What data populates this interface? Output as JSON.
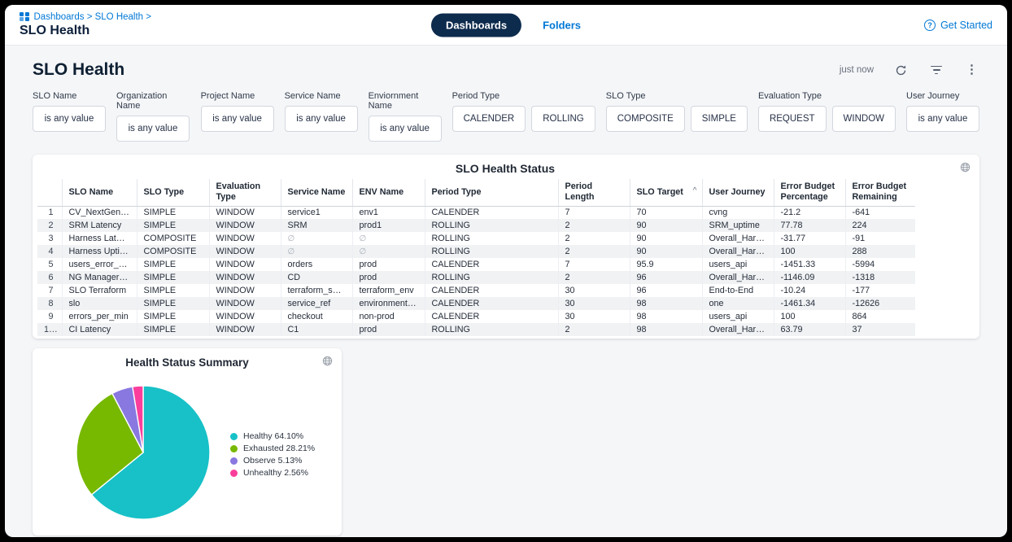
{
  "topbar": {
    "breadcrumb": "Dashboards > SLO Health >",
    "page_title": "SLO Health",
    "tabs": [
      {
        "label": "Dashboards",
        "active": true
      },
      {
        "label": "Folders",
        "active": false
      }
    ],
    "get_started": "Get Started"
  },
  "dashboard": {
    "title": "SLO Health",
    "updated": "just now"
  },
  "filters": [
    {
      "label": "SLO Name",
      "type": "value",
      "value": "is any value"
    },
    {
      "label": "Organization Name",
      "type": "value",
      "value": "is any value"
    },
    {
      "label": "Project Name",
      "type": "value",
      "value": "is any value"
    },
    {
      "label": "Service Name",
      "type": "value",
      "value": "is any value"
    },
    {
      "label": "Enviornment Name",
      "type": "value",
      "value": "is any value"
    },
    {
      "label": "Period Type",
      "type": "buttons",
      "options": [
        "CALENDER",
        "ROLLING"
      ]
    },
    {
      "label": "SLO Type",
      "type": "buttons",
      "options": [
        "COMPOSITE",
        "SIMPLE"
      ]
    },
    {
      "label": "Evaluation Type",
      "type": "buttons",
      "options": [
        "REQUEST",
        "WINDOW"
      ]
    },
    {
      "label": "User Journey",
      "type": "value",
      "value": "is any value"
    }
  ],
  "table": {
    "title": "SLO Health Status",
    "columns": [
      "SLO Name",
      "SLO Type",
      "Evaluation Type",
      "Service Name",
      "ENV Name",
      "Period Type",
      "Period Length",
      "SLO Target",
      "User Journey",
      "Error Budget Percentage",
      "Error Budget Remaining"
    ],
    "sorted_column": "SLO Target",
    "sort_direction": "asc",
    "rows": [
      [
        "CV_NextGen_Prod",
        "SIMPLE",
        "WINDOW",
        "service1",
        "env1",
        "CALENDER",
        "7",
        "70",
        "cvng",
        "-21.2",
        "-641"
      ],
      [
        "SRM Latency",
        "SIMPLE",
        "WINDOW",
        "SRM",
        "prod1",
        "ROLLING",
        "2",
        "90",
        "SRM_uptime",
        "77.78",
        "224"
      ],
      [
        "Harness Latency",
        "COMPOSITE",
        "WINDOW",
        "∅",
        "∅",
        "ROLLING",
        "2",
        "90",
        "Overall_Harness",
        "-31.77",
        "-91"
      ],
      [
        "Harness Uptime",
        "COMPOSITE",
        "WINDOW",
        "∅",
        "∅",
        "ROLLING",
        "2",
        "90",
        "Overall_Harness",
        "100",
        "288"
      ],
      [
        "users_error_per_min",
        "SIMPLE",
        "WINDOW",
        "orders",
        "prod",
        "CALENDER",
        "7",
        "95.9",
        "users_api",
        "-1451.33",
        "-5994"
      ],
      [
        "NG Manager Latency",
        "SIMPLE",
        "WINDOW",
        "CD",
        "prod",
        "ROLLING",
        "2",
        "96",
        "Overall_Harness",
        "-1146.09",
        "-1318"
      ],
      [
        "SLO Terraform",
        "SIMPLE",
        "WINDOW",
        "terraform_service",
        "terraform_env",
        "CALENDER",
        "30",
        "96",
        "End-to-End",
        "-10.24",
        "-177"
      ],
      [
        "slo",
        "SIMPLE",
        "WINDOW",
        "service_ref",
        "environment_ref",
        "CALENDER",
        "30",
        "98",
        "one",
        "-1461.34",
        "-12626"
      ],
      [
        "errors_per_min",
        "SIMPLE",
        "WINDOW",
        "checkout",
        "non-prod",
        "CALENDER",
        "30",
        "98",
        "users_api",
        "100",
        "864"
      ],
      [
        "CI Latency",
        "SIMPLE",
        "WINDOW",
        "C1",
        "prod",
        "ROLLING",
        "2",
        "98",
        "Overall_Harness",
        "63.79",
        "37"
      ]
    ]
  },
  "chart_data": {
    "type": "pie",
    "title": "Health Status Summary",
    "labels": [
      "Healthy",
      "Exhausted",
      "Observe",
      "Unhealthy"
    ],
    "values": [
      64.1,
      28.21,
      5.13,
      2.56
    ],
    "colors": [
      "#17c1c7",
      "#77b800",
      "#8878e0",
      "#fb3e9b"
    ],
    "legend": [
      "Healthy 64.10%",
      "Exhausted 28.21%",
      "Observe 5.13%",
      "Unhealthy 2.56%"
    ],
    "legend_position": "right",
    "start_angle_deg": 0,
    "direction": "clockwise"
  },
  "glyphs": {
    "kebab": "⋮",
    "sort_asc": "^",
    "question_mark": "?",
    "null_value": "∅"
  },
  "colors": {
    "accent_blue": "#0278d5",
    "active_tab_navy": "#0d2b4d",
    "background": "#f5f6f8"
  }
}
